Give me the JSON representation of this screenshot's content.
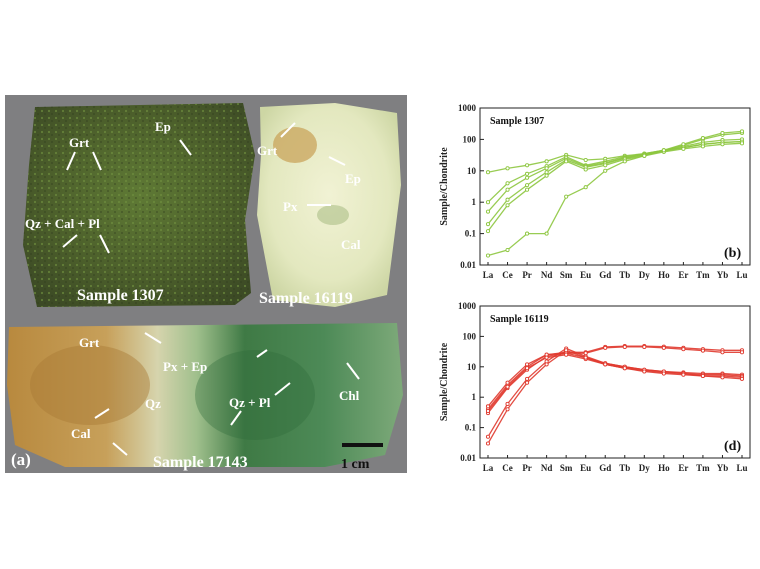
{
  "photo": {
    "panel_label": "(a)",
    "scale_label": "1 cm",
    "samples": {
      "s1307": "Sample 1307",
      "s16119": "Sample 16119",
      "s17143": "Sample 17143"
    },
    "minerals": {
      "grt_a": "Grt",
      "ep_a": "Ep",
      "qzcalpl": "Qz + Cal + Pl",
      "grt_b": "Grt",
      "ep_b": "Ep",
      "px_b": "Px",
      "cal_b": "Cal",
      "grt_c": "Grt",
      "pxep": "Px + Ep",
      "chl": "Chl",
      "qz": "Qz",
      "qzpl": "Qz + Pl",
      "cal_c": "Cal"
    }
  },
  "chart_data": [
    {
      "type": "line",
      "panel_label": "(b)",
      "title": "Sample 1307",
      "ylabel": "Sample/Chondrite",
      "yscale": "log",
      "ylim": [
        0.01,
        1000
      ],
      "yticks": [
        "1000",
        "100",
        "10",
        "1",
        "0.1",
        "0.01"
      ],
      "categories": [
        "La",
        "Ce",
        "Pr",
        "Nd",
        "Sm",
        "Eu",
        "Gd",
        "Tb",
        "Dy",
        "Ho",
        "Er",
        "Tm",
        "Yb",
        "Lu"
      ],
      "color": "#8dc63f",
      "series": [
        {
          "values": [
            9,
            12,
            15,
            20,
            32,
            22,
            24,
            30,
            35,
            45,
            55,
            70,
            80,
            85
          ]
        },
        {
          "values": [
            1,
            4,
            8,
            14,
            28,
            15,
            20,
            28,
            35,
            45,
            60,
            80,
            95,
            100
          ]
        },
        {
          "values": [
            0.5,
            2.5,
            6,
            12,
            25,
            14,
            18,
            26,
            33,
            45,
            65,
            100,
            140,
            160
          ]
        },
        {
          "values": [
            0.2,
            1.2,
            3.5,
            9,
            22,
            13,
            17,
            25,
            32,
            42,
            55,
            70,
            80,
            85
          ]
        },
        {
          "values": [
            0.12,
            0.8,
            2.5,
            7,
            20,
            11,
            15,
            23,
            30,
            40,
            50,
            60,
            70,
            75
          ]
        },
        {
          "values": [
            0.02,
            0.03,
            0.1,
            0.1,
            1.5,
            3,
            10,
            20,
            30,
            45,
            70,
            110,
            160,
            180
          ]
        }
      ]
    },
    {
      "type": "line",
      "panel_label": "(d)",
      "title": "Sample 16119",
      "ylabel": "Sample/Chondrite",
      "yscale": "log",
      "ylim": [
        0.01,
        1000
      ],
      "yticks": [
        "1000",
        "100",
        "10",
        "1",
        "0.1",
        "0.01"
      ],
      "categories": [
        "La",
        "Ce",
        "Pr",
        "Nd",
        "Sm",
        "Eu",
        "Gd",
        "Tb",
        "Dy",
        "Ho",
        "Er",
        "Tm",
        "Yb",
        "Lu"
      ],
      "color": "#e03a2f",
      "series": [
        {
          "values": [
            0.4,
            2.5,
            10,
            25,
            30,
            30,
            45,
            48,
            48,
            46,
            42,
            38,
            35,
            35
          ]
        },
        {
          "values": [
            0.3,
            2,
            8,
            22,
            28,
            28,
            42,
            45,
            45,
            42,
            38,
            34,
            30,
            30
          ]
        },
        {
          "values": [
            0.5,
            3,
            12,
            25,
            28,
            20,
            13,
            10,
            8,
            7,
            6.5,
            6,
            6,
            5.5
          ]
        },
        {
          "values": [
            0.35,
            2.2,
            9,
            20,
            25,
            18,
            12,
            9,
            7.5,
            6.5,
            6,
            5.5,
            5.5,
            5
          ]
        },
        {
          "values": [
            0.05,
            0.6,
            4,
            15,
            40,
            22,
            13,
            10,
            8,
            7,
            6,
            5,
            5,
            4.5
          ]
        },
        {
          "values": [
            0.03,
            0.4,
            3,
            12,
            35,
            20,
            12,
            9,
            7,
            6,
            5.5,
            5,
            4.5,
            4
          ]
        }
      ]
    }
  ]
}
